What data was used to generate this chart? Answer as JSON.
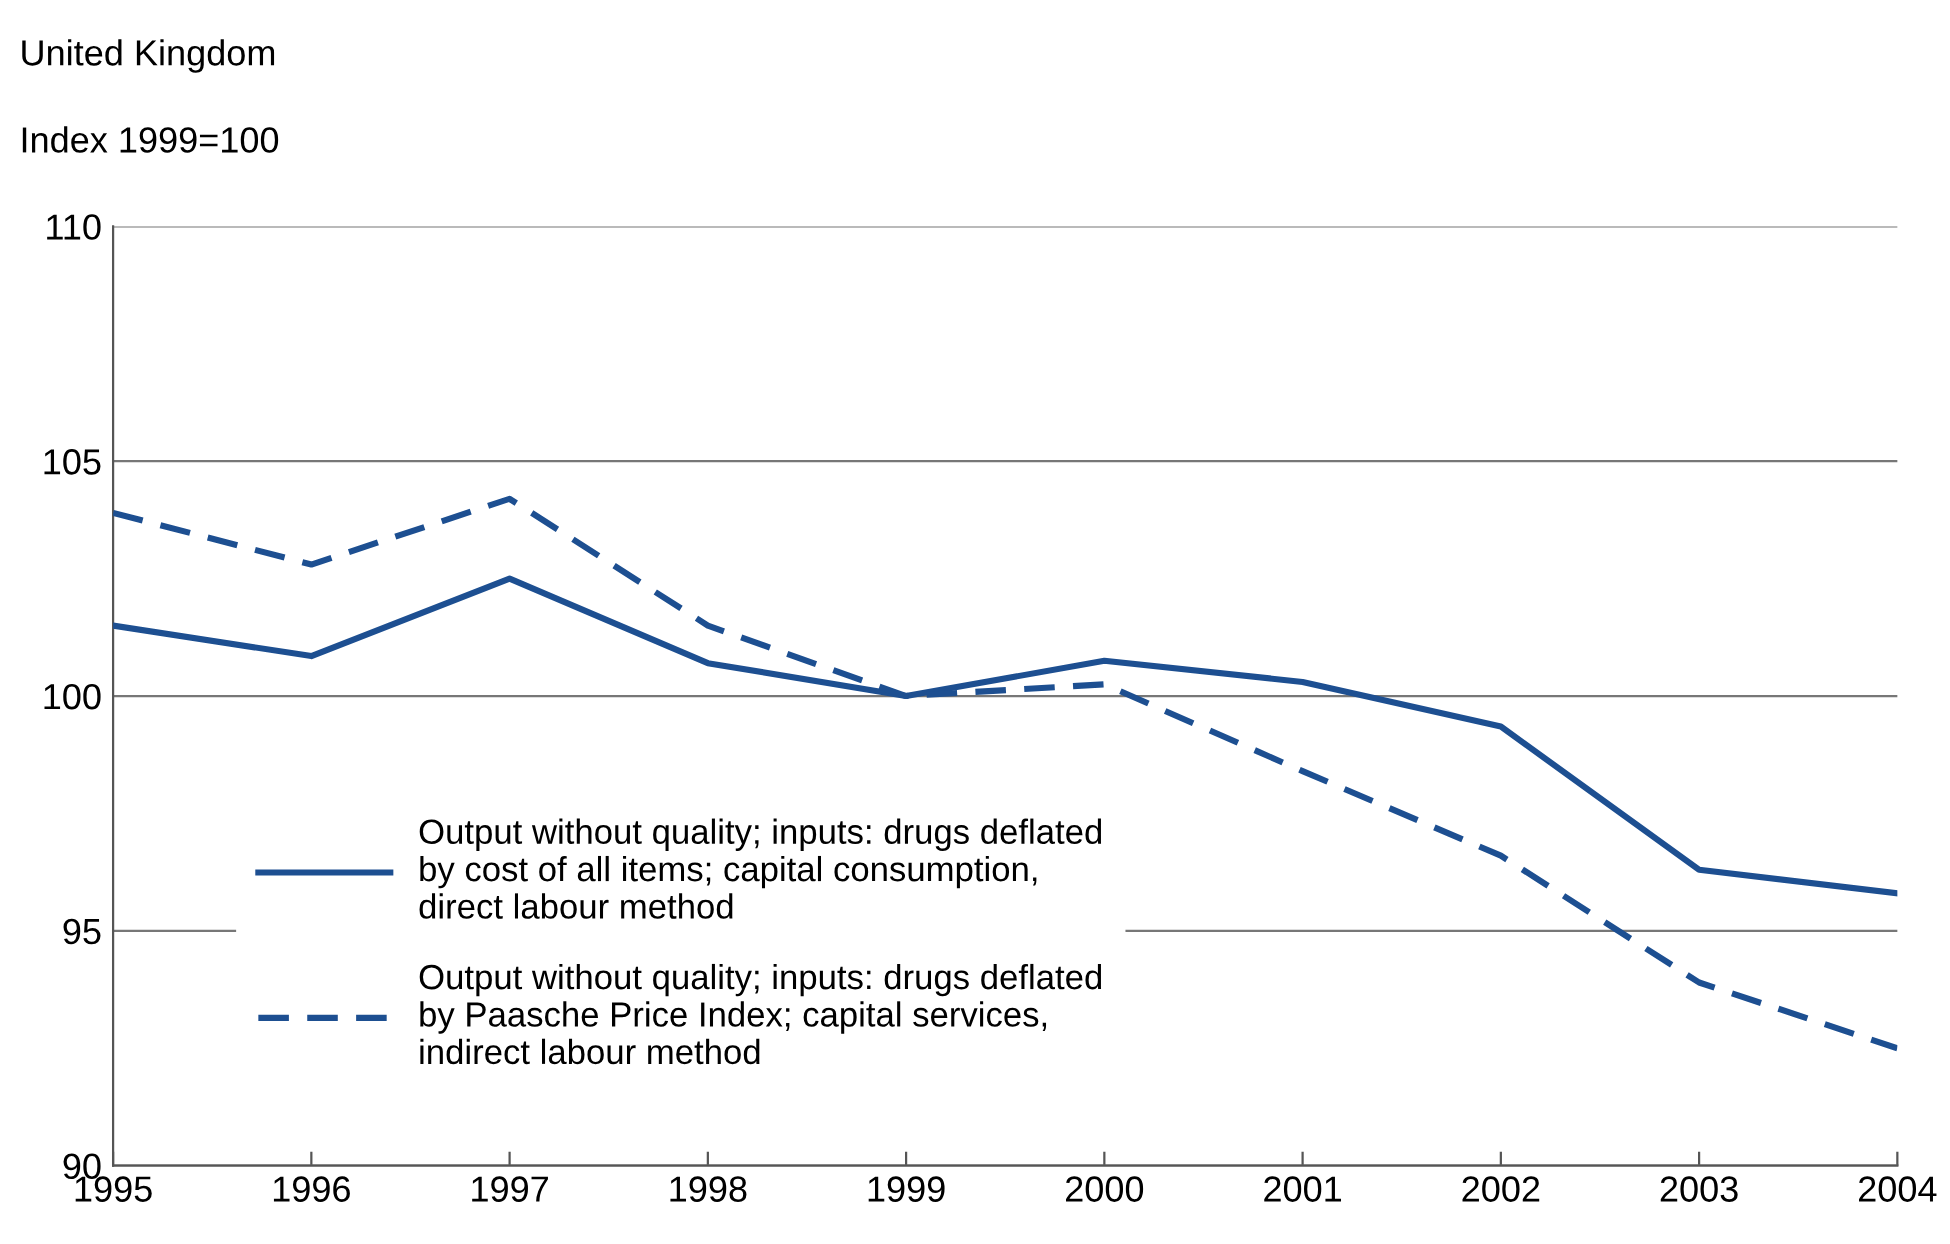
{
  "chart_data": {
    "type": "line",
    "title": "United Kingdom",
    "ylabel": "Index 1999=100",
    "x": [
      1995,
      1996,
      1997,
      1998,
      1999,
      2000,
      2001,
      2002,
      2003,
      2004
    ],
    "series": [
      {
        "name": "Output without quality; inputs: drugs deflated\nby cost of all items; capital consumption,\ndirect labour method",
        "color": "#1d4f91",
        "line_style": "solid",
        "values": [
          101.5,
          100.85,
          102.5,
          100.7,
          100,
          100.75,
          100.3,
          99.35,
          96.3,
          95.8
        ]
      },
      {
        "name": "Output without quality; inputs: drugs deflated\nby Paasche Price Index; capital services,\nindirect labour method",
        "color": "#1d4f91",
        "line_style": "dashed",
        "values": [
          103.9,
          102.8,
          104.2,
          101.5,
          100,
          100.25,
          98.4,
          96.6,
          93.9,
          92.5
        ]
      }
    ],
    "xlim": [
      1995,
      2004
    ],
    "xticks": [
      1995,
      1996,
      1997,
      1998,
      1999,
      2000,
      2001,
      2002,
      2003,
      2004
    ],
    "ylim": [
      90,
      110
    ],
    "yticks": [
      90,
      95,
      100,
      105,
      110
    ],
    "grid": "y",
    "legend": "bottom left",
    "marker": "none"
  }
}
